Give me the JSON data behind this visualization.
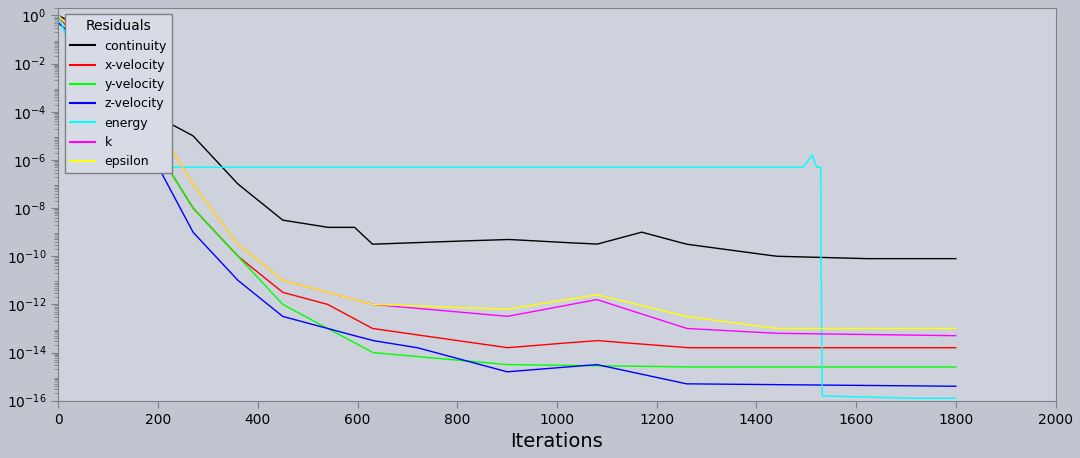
{
  "title": "Residuals",
  "xlabel": "Iterations",
  "background_color": "#c0c5d0",
  "plot_bg_color": "#cdd2dd",
  "legend_bg_color": "#d6dbe6",
  "legend_labels": [
    "continuity",
    "x-velocity",
    "y-velocity",
    "z-velocity",
    "energy",
    "k",
    "epsilon"
  ],
  "line_colors": [
    "black",
    "red",
    "lime",
    "blue",
    "cyan",
    "magenta",
    "yellow"
  ],
  "xlim": [
    0,
    2000
  ],
  "x_ticks": [
    0,
    200,
    400,
    600,
    800,
    1000,
    1200,
    1400,
    1600,
    1800,
    2000
  ],
  "n_iters": 1800
}
